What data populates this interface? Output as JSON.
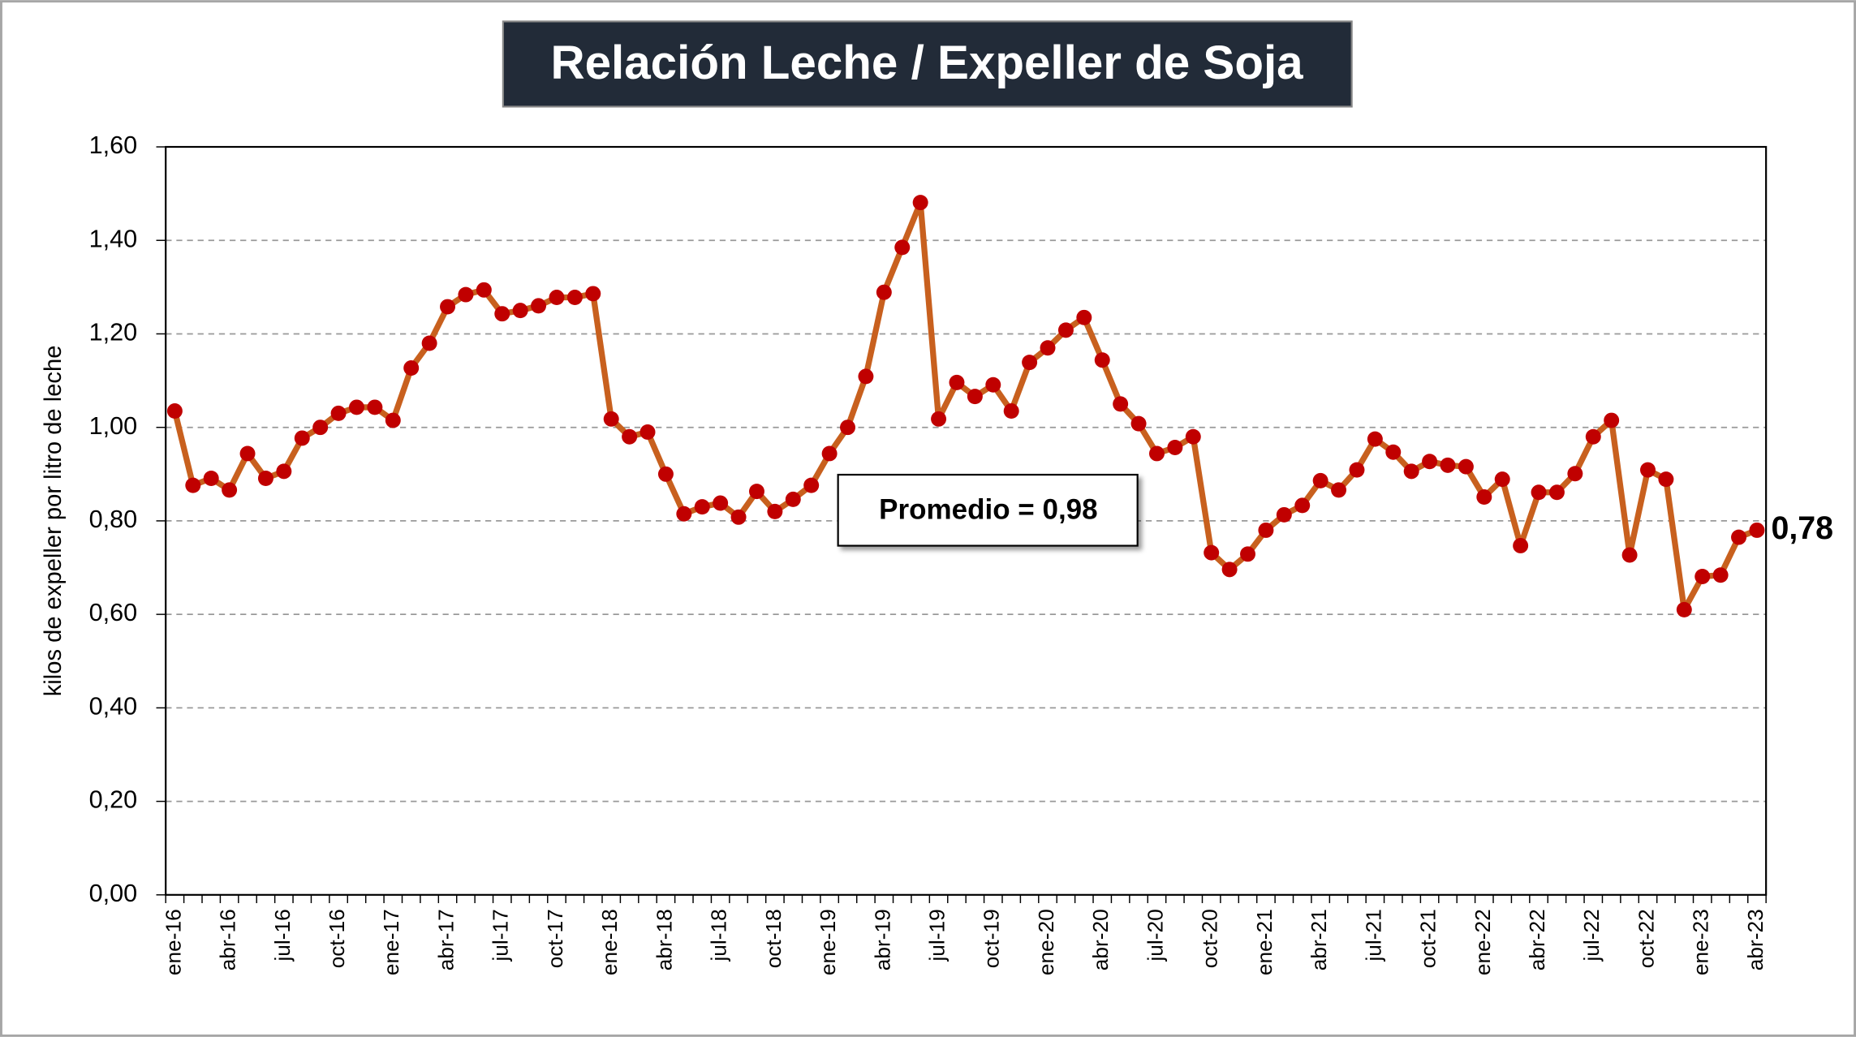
{
  "chart_data": {
    "type": "line",
    "title": "Relación Leche / Expeller de Soja",
    "y_label": "kilos de expeller por litro de leche",
    "annotation": "Promedio = 0,98",
    "categories": [
      "ene-16",
      null,
      null,
      "abr-16",
      null,
      null,
      "jul-16",
      null,
      null,
      "oct-16",
      null,
      null,
      "ene-17",
      null,
      null,
      "abr-17",
      null,
      null,
      "jul-17",
      null,
      null,
      "oct-17",
      null,
      null,
      "ene-18",
      null,
      null,
      "abr-18",
      null,
      null,
      "jul-18",
      null,
      null,
      "oct-18",
      null,
      null,
      "ene-19",
      null,
      null,
      "abr-19",
      null,
      null,
      "jul-19",
      null,
      null,
      "oct-19",
      null,
      null,
      "ene-20",
      null,
      null,
      "abr-20",
      null,
      null,
      "jul-20",
      null,
      null,
      "oct-20",
      null,
      null,
      "ene-21",
      null,
      null,
      "abr-21",
      null,
      null,
      "jul-21",
      null,
      null,
      "oct-21",
      null,
      null,
      "ene-22",
      null,
      null,
      "abr-22",
      null,
      null,
      "jul-22",
      null,
      null,
      "oct-22",
      null,
      null,
      "ene-23",
      null,
      null,
      "abr-23"
    ],
    "series": [
      {
        "name": "Relación Leche / Expeller de Soja",
        "color": "#c8601e",
        "marker_color": "#c00000",
        "values": [
          1.035,
          0.876,
          0.891,
          0.866,
          0.944,
          0.891,
          0.906,
          0.977,
          1.0,
          1.03,
          1.043,
          1.043,
          1.015,
          1.127,
          1.18,
          1.258,
          1.284,
          1.294,
          1.243,
          1.25,
          1.26,
          1.278,
          1.278,
          1.286,
          1.018,
          0.98,
          0.99,
          0.9,
          0.815,
          0.83,
          0.838,
          0.808,
          0.863,
          0.82,
          0.846,
          0.876,
          0.944,
          1.0,
          1.109,
          1.289,
          1.385,
          1.481,
          1.018,
          1.096,
          1.066,
          1.091,
          1.035,
          1.139,
          1.17,
          1.208,
          1.235,
          1.144,
          1.05,
          1.008,
          0.944,
          0.957,
          0.98,
          0.732,
          0.696,
          0.729,
          0.78,
          0.813,
          0.833,
          0.886,
          0.866,
          0.909,
          0.975,
          0.947,
          0.906,
          0.927,
          0.919,
          0.916,
          0.851,
          0.889,
          0.747,
          0.861,
          0.861,
          0.901,
          0.98,
          1.015,
          0.727,
          0.909,
          0.889,
          0.61,
          0.681,
          0.684,
          0.765,
          0.78
        ],
        "value_labels": [
          null,
          null,
          null,
          null,
          null,
          null,
          null,
          null,
          null,
          null,
          null,
          null,
          null,
          null,
          null,
          null,
          null,
          null,
          null,
          null,
          null,
          null,
          null,
          null,
          null,
          null,
          null,
          null,
          null,
          null,
          null,
          null,
          null,
          null,
          null,
          null,
          null,
          null,
          null,
          null,
          null,
          null,
          null,
          null,
          null,
          null,
          null,
          null,
          null,
          null,
          null,
          null,
          null,
          null,
          null,
          null,
          null,
          null,
          null,
          null,
          null,
          null,
          null,
          null,
          null,
          null,
          null,
          null,
          null,
          null,
          null,
          null,
          null,
          null,
          null,
          null,
          null,
          null,
          null,
          null,
          null,
          null,
          null,
          null,
          null,
          null,
          null,
          "0,78"
        ]
      }
    ],
    "ylim": [
      0,
      1.6
    ],
    "yticks": [
      {
        "value": 0,
        "label": "0,00"
      },
      {
        "value": 0.2,
        "label": "0,20"
      },
      {
        "value": 0.4,
        "label": "0,40"
      },
      {
        "value": 0.6,
        "label": "0,60"
      },
      {
        "value": 0.8,
        "label": "0,80"
      },
      {
        "value": 1.0,
        "label": "1,00"
      },
      {
        "value": 1.2,
        "label": "1,20"
      },
      {
        "value": 1.4,
        "label": "1,40"
      },
      {
        "value": 1.6,
        "label": "1,60"
      }
    ],
    "grid": true
  }
}
